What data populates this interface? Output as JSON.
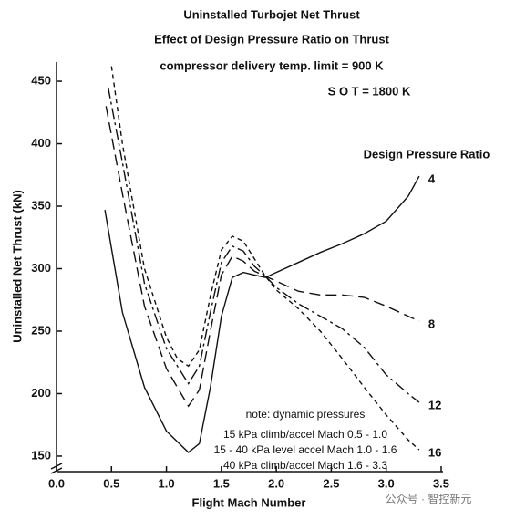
{
  "chart_data": {
    "type": "line",
    "title": "Uninstalled Turbojet Net Thrust",
    "subtitle": "Effect of Design Pressure Ratio on Thrust",
    "annotations": [
      "compressor delivery temp. limit = 900 K",
      "S O T = 1800 K"
    ],
    "note": [
      "note: dynamic pressures",
      "15 kPa climb/accel Mach 0.5 - 1.0",
      "15 - 40 kPa level accel Mach 1.0 - 1.6",
      "40 kPa climb/accel Mach 1.6 - 3.3"
    ],
    "legend_title": "Design Pressure Ratio",
    "xlabel": "Flight Mach Number",
    "ylabel": "Uninstalled Net Thrust (kN)",
    "watermark": "公众号 · 智控新元",
    "xlim": [
      0,
      3.5
    ],
    "xticks": [
      {
        "value": 0,
        "label": "0.0"
      },
      0.5,
      {
        "value": 1,
        "label": "1.0"
      },
      1.5,
      {
        "value": 2,
        "label": "2.0"
      },
      2.5,
      {
        "value": 3,
        "label": "3.0"
      },
      3.5
    ],
    "ylim": [
      138,
      465
    ],
    "yticks": [
      150,
      200,
      250,
      300,
      350,
      400,
      450
    ],
    "series": [
      {
        "name": "4",
        "color": "#111111",
        "dash": "none",
        "x": [
          0.44,
          0.6,
          0.8,
          1.0,
          1.2,
          1.3,
          1.4,
          1.5,
          1.6,
          1.7,
          1.8,
          1.9,
          2.0,
          2.2,
          2.4,
          2.6,
          2.8,
          3.0,
          3.2,
          3.3
        ],
        "values": [
          347,
          265,
          205,
          170,
          153,
          160,
          205,
          262,
          293,
          297,
          295,
          293,
          297,
          305,
          313,
          320,
          328,
          338,
          358,
          374
        ]
      },
      {
        "name": "8",
        "color": "#111111",
        "dash": "12 6",
        "x": [
          0.45,
          0.6,
          0.8,
          1.0,
          1.2,
          1.3,
          1.4,
          1.5,
          1.6,
          1.7,
          1.8,
          1.9,
          2.0,
          2.2,
          2.4,
          2.6,
          2.8,
          3.0,
          3.2,
          3.3
        ],
        "values": [
          430,
          360,
          270,
          220,
          190,
          203,
          250,
          295,
          310,
          306,
          298,
          294,
          290,
          282,
          279,
          279,
          277,
          270,
          262,
          258
        ]
      },
      {
        "name": "12",
        "color": "#111111",
        "dash": "12 4 3 4",
        "x": [
          0.47,
          0.6,
          0.8,
          1.0,
          1.2,
          1.3,
          1.4,
          1.5,
          1.6,
          1.7,
          1.8,
          1.9,
          2.0,
          2.2,
          2.4,
          2.6,
          2.8,
          3.0,
          3.2,
          3.3
        ],
        "values": [
          445,
          385,
          288,
          236,
          208,
          222,
          265,
          305,
          318,
          314,
          302,
          294,
          285,
          272,
          262,
          252,
          237,
          215,
          200,
          193
        ]
      },
      {
        "name": "16",
        "color": "#111111",
        "dash": "5 4",
        "x": [
          0.5,
          0.6,
          0.8,
          1.0,
          1.1,
          1.2,
          1.3,
          1.4,
          1.5,
          1.6,
          1.7,
          1.8,
          1.9,
          2.0,
          2.2,
          2.4,
          2.6,
          2.8,
          3.0,
          3.2,
          3.3
        ],
        "values": [
          462,
          400,
          300,
          245,
          228,
          222,
          235,
          278,
          315,
          326,
          322,
          308,
          294,
          283,
          268,
          250,
          228,
          205,
          183,
          163,
          155
        ]
      }
    ]
  }
}
